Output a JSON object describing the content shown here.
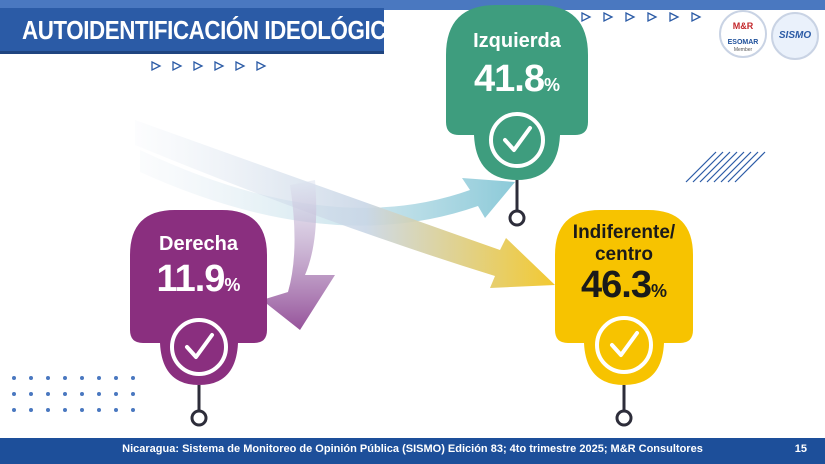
{
  "header": {
    "title": "AUTOIDENTIFICACIÓN IDEOLÓGICA"
  },
  "logos": {
    "mr_text": "M&R",
    "mr_sub": "ESOMAR",
    "mr_member": "Member",
    "sismo_text": "SISMO"
  },
  "footer": {
    "source": "Nicaragua: Sistema de Monitoreo de Opinión Pública (SISMO) Edición 83; 4to trimestre 2025; M&R Consultores",
    "page_number": "15"
  },
  "colors": {
    "izquierda": "#3e9d7e",
    "derecha": "#8a2f7f",
    "indiferente": "#f7c300",
    "brand_blue": "#2b5ba6"
  },
  "chart_data": {
    "type": "bar",
    "categories": [
      "Izquierda",
      "Derecha",
      "Indiferente/ centro"
    ],
    "values": [
      41.8,
      11.9,
      46.3
    ],
    "unit": "%",
    "title": "AUTOIDENTIFICACIÓN IDEOLÓGICA"
  }
}
